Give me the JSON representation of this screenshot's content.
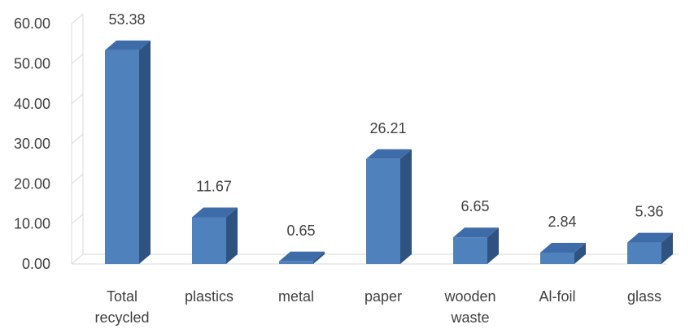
{
  "chart_data": {
    "type": "bar",
    "categories": [
      "Total recycled",
      "plastics",
      "metal",
      "paper",
      "wooden waste",
      "Al-foil",
      "glass"
    ],
    "category_lines": [
      [
        "Total",
        "recycled"
      ],
      [
        "plastics"
      ],
      [
        "metal"
      ],
      [
        "paper"
      ],
      [
        "wooden",
        "waste"
      ],
      [
        "Al-foil"
      ],
      [
        "glass"
      ]
    ],
    "values": [
      53.38,
      11.67,
      0.65,
      26.21,
      6.65,
      2.84,
      5.36
    ],
    "value_labels": [
      "53.38",
      "11.67",
      "0.65",
      "26.21",
      "6.65",
      "2.84",
      "5.36"
    ],
    "y_ticks": [
      "0.00",
      "10.00",
      "20.00",
      "30.00",
      "40.00",
      "50.00",
      "60.00"
    ],
    "ylim": [
      0,
      60
    ],
    "title": "",
    "xlabel": "",
    "ylabel": "",
    "grid": false,
    "legend": "none",
    "style": "3d-column",
    "colors": {
      "bar_front": "#4F81BD",
      "bar_side": "#2F5381",
      "bar_top": "#3E6CA8",
      "axis": "#D9D9D9",
      "text": "#404040"
    }
  }
}
